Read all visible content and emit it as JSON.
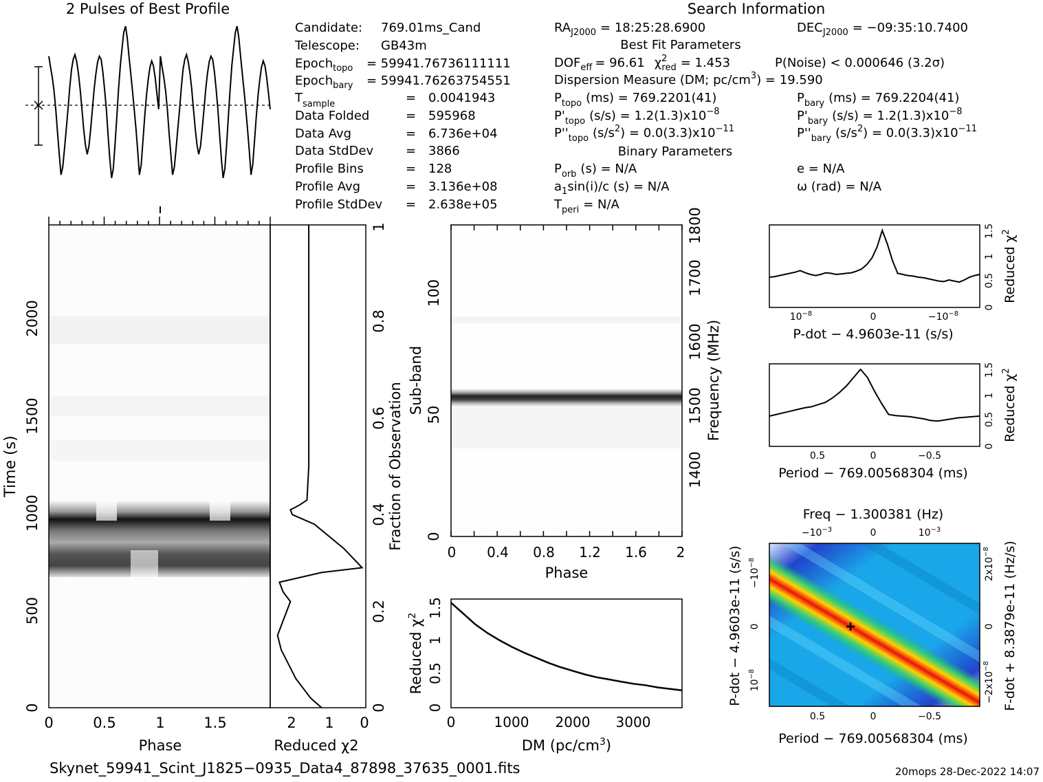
{
  "header": {
    "profile_title": "2 Pulses of Best Profile",
    "search_title": "Search Information",
    "best_fit_title": "Best Fit Parameters",
    "binary_title": "Binary Parameters"
  },
  "info_left": [
    {
      "label": "Candidate:",
      "value": "769.01ms_Cand"
    },
    {
      "label": "Telescope:",
      "value": "GB43m"
    },
    {
      "label": "Epoch",
      "sub": "topo",
      "value": "= 59941.76736111111"
    },
    {
      "label": "Epoch",
      "sub": "bary",
      "value": "= 59941.76263754551"
    },
    {
      "label": "T",
      "sub": "sample",
      "eq": "=",
      "value": "0.0041943"
    },
    {
      "label": "Data Folded",
      "eq": "=",
      "value": "595968"
    },
    {
      "label": "Data Avg",
      "eq": "=",
      "value": "6.736e+04"
    },
    {
      "label": "Data StdDev",
      "eq": "=",
      "value": "3866"
    },
    {
      "label": "Profile Bins",
      "eq": "=",
      "value": "128"
    },
    {
      "label": "Profile Avg",
      "eq": "=",
      "value": "3.136e+08"
    },
    {
      "label": "Profile StdDev",
      "eq": "=",
      "value": "2.638e+05"
    }
  ],
  "info_mid": {
    "ra": "= 18:25:28.6900",
    "ra_label": "RA",
    "ra_sub": "J2000",
    "dof": "DOF",
    "dof_sub": "eff",
    "dof_val": "= 96.61",
    "chi": "χ",
    "chi_sup": "2",
    "chi_sub": "red",
    "chi_val": "= 1.453",
    "pnoise": "P(Noise) < 0.000646   (3.2σ)",
    "dm": "Dispersion Measure (DM; pc/cm",
    "dm_sup": "3",
    "dm_val": ") = 19.590",
    "ptopo": "(ms) =   769.2201(41)",
    "pdtopo": "(s/s) =   1.2(1.3)x10",
    "pdtopo_exp": "−8",
    "pddtopo": "(s/s",
    "pddtopo_sup": "2",
    "pddtopo_val": ") = 0.0(3.3)x10",
    "pddtopo_exp": "−11",
    "porb": "(s) = N/A",
    "a1": "a",
    "a1_sub": "1",
    "a1_val": "sin(i)/c (s) = N/A",
    "tperi": "= N/A"
  },
  "info_right": {
    "dec_label": "DEC",
    "dec_sub": "J2000",
    "dec": "= −09:35:10.7400",
    "pbary": "(ms) =   769.2204(41)",
    "pdbary": "(s/s) =   1.2(1.3)x10",
    "pdbary_exp": "−8",
    "pddbary": "(s/s",
    "pddbary_sup": "2",
    "pddbary_val": ") = 0.0(3.3)x10",
    "pddbary_exp": "−11",
    "e": "e = N/A",
    "omega": "ω (rad) = N/A"
  },
  "footer": {
    "filename": "Skynet_59941_Scint_J1825−0935_Data4_87898_37635_0001.fits",
    "stamp": "20mops 28-Dec-2022 14:07"
  },
  "chart_data": [
    {
      "type": "line",
      "name": "profile",
      "title": "2 Pulses of Best Profile",
      "xlim": [
        0,
        2
      ],
      "y": [
        0.62,
        0.48,
        0.35,
        0.18,
        -0.05,
        -0.35,
        -0.62,
        -0.88,
        -0.78,
        -0.55,
        -0.3,
        -0.05,
        0.22,
        0.45,
        0.58,
        0.64,
        0.55,
        0.4,
        0.2,
        -0.05,
        -0.3,
        -0.5,
        -0.62,
        -0.52,
        -0.3,
        -0.05,
        0.2,
        0.4,
        0.55,
        0.62,
        0.58,
        0.42,
        0.2,
        -0.05,
        -0.38,
        -0.68,
        -0.92,
        -0.8,
        -0.5,
        -0.15,
        0.2,
        0.5,
        0.72,
        0.92,
        1.0,
        0.85,
        0.62,
        0.4,
        0.18,
        -0.05,
        -0.3,
        -0.58,
        -0.88,
        -0.75,
        -0.45,
        -0.15,
        0.12,
        0.32,
        0.48,
        0.56,
        0.5,
        0.35,
        0.15,
        -0.05,
        0.62,
        0.48,
        0.35,
        0.18,
        -0.05,
        -0.35,
        -0.62,
        -0.88,
        -0.78,
        -0.55,
        -0.3,
        -0.05,
        0.22,
        0.45,
        0.58,
        0.64,
        0.55,
        0.4,
        0.2,
        -0.05,
        -0.3,
        -0.5,
        -0.62,
        -0.52,
        -0.3,
        -0.05,
        0.2,
        0.4,
        0.55,
        0.62,
        0.58,
        0.42,
        0.2,
        -0.05,
        -0.38,
        -0.68,
        -0.92,
        -0.8,
        -0.5,
        -0.15,
        0.2,
        0.5,
        0.72,
        0.92,
        1.0,
        0.85,
        0.62,
        0.4,
        0.18,
        -0.05,
        -0.3,
        -0.58,
        -0.88,
        -0.75,
        -0.45,
        -0.15,
        0.12,
        0.32,
        0.48,
        0.56,
        0.5,
        0.35,
        0.15,
        -0.05
      ]
    },
    {
      "type": "heatmap",
      "name": "time_phase",
      "xlabel": "Phase",
      "ylabel": "Time (s)",
      "xlim": [
        0,
        2
      ],
      "ylim": [
        0,
        2480
      ],
      "xticks": [
        "0",
        "0.5",
        "1",
        "1.5"
      ],
      "yticks": [
        "0",
        "500",
        "1000",
        "1500",
        "2000"
      ],
      "dark_band_s": [
        700,
        1060
      ]
    },
    {
      "type": "line",
      "name": "time_chi",
      "xlabel": "Reduced χ2",
      "ylabel": "Fraction of Observation",
      "xticks": [
        "2",
        "1",
        "0"
      ],
      "yticks": [
        "0",
        "0.2",
        "0.4",
        "0.6",
        "0.8",
        "1"
      ],
      "points": [
        [
          1.2,
          0.0
        ],
        [
          1.5,
          0.02
        ],
        [
          1.9,
          0.06
        ],
        [
          2.3,
          0.12
        ],
        [
          2.4,
          0.15
        ],
        [
          2.25,
          0.18
        ],
        [
          2.05,
          0.22
        ],
        [
          2.25,
          0.24
        ],
        [
          2.35,
          0.26
        ],
        [
          1.2,
          0.28
        ],
        [
          0.1,
          0.29
        ],
        [
          0.6,
          0.33
        ],
        [
          1.4,
          0.38
        ],
        [
          2.0,
          0.4
        ],
        [
          2.05,
          0.41
        ],
        [
          1.8,
          0.42
        ],
        [
          1.6,
          0.43
        ],
        [
          1.55,
          0.5
        ],
        [
          1.55,
          0.7
        ],
        [
          1.55,
          0.9
        ],
        [
          1.55,
          1.0
        ]
      ]
    },
    {
      "type": "heatmap",
      "name": "subband_phase",
      "xlabel": "Phase",
      "ylabel": "Sub-band",
      "y2label": "Frequency (MHz)",
      "xlim": [
        0,
        2
      ],
      "xticks": [
        "0",
        "0.4",
        "0.8",
        "1.2",
        "1.6",
        "2"
      ],
      "yticks": [
        "0",
        "50",
        "100"
      ],
      "y2ticks": [
        "1400",
        "1500",
        "1600",
        "1700",
        "1800"
      ],
      "dark_band_subband": [
        55,
        60
      ]
    },
    {
      "type": "line",
      "name": "dm_chi",
      "xlabel": "DM (pc/cm3)",
      "ylabel": "Reduced χ2",
      "xlim": [
        0,
        3800
      ],
      "ylim": [
        0,
        1.5
      ],
      "xticks": [
        "0",
        "1000",
        "2000",
        "3000"
      ],
      "yticks": [
        "0",
        "0.5",
        "1",
        "1.5"
      ],
      "x": [
        0,
        200,
        400,
        600,
        800,
        1000,
        1200,
        1400,
        1600,
        1800,
        2000,
        2200,
        2400,
        2600,
        2800,
        3000,
        3200,
        3400,
        3600,
        3800
      ],
      "y": [
        1.45,
        1.3,
        1.15,
        1.03,
        0.93,
        0.84,
        0.76,
        0.69,
        0.62,
        0.56,
        0.51,
        0.46,
        0.42,
        0.39,
        0.36,
        0.33,
        0.31,
        0.28,
        0.26,
        0.24
      ]
    },
    {
      "type": "line",
      "name": "pdot_chi",
      "xlabel": "P-dot − 4.9603e-11 (s/s)",
      "ylabel": "Reduced χ2",
      "xticks": [
        "10−8",
        "0",
        "−10−8"
      ],
      "yticks": [
        "0",
        "0.5",
        "1",
        "1.5"
      ],
      "ylim": [
        0,
        1.5
      ],
      "y": [
        0.55,
        0.56,
        0.58,
        0.6,
        0.62,
        0.64,
        0.67,
        0.63,
        0.6,
        0.58,
        0.6,
        0.63,
        0.62,
        0.6,
        0.61,
        0.62,
        0.63,
        0.66,
        0.7,
        0.78,
        0.9,
        1.1,
        1.4,
        1.15,
        0.85,
        0.62,
        0.6,
        0.58,
        0.57,
        0.55,
        0.54,
        0.52,
        0.5,
        0.48,
        0.47,
        0.5,
        0.48,
        0.46,
        0.5,
        0.55,
        0.58,
        0.6
      ]
    },
    {
      "type": "line",
      "name": "period_chi",
      "xlabel": "Period − 769.00568304 (ms)",
      "ylabel": "Reduced χ2",
      "xticks": [
        "0.5",
        "0",
        "−0.5"
      ],
      "yticks": [
        "0",
        "0.5",
        "1",
        "1.5"
      ],
      "ylim": [
        0,
        1.5
      ],
      "y": [
        0.55,
        0.58,
        0.61,
        0.64,
        0.67,
        0.7,
        0.72,
        0.76,
        0.8,
        0.88,
        0.98,
        1.1,
        1.25,
        1.4,
        1.25,
        1.0,
        0.78,
        0.58,
        0.56,
        0.55,
        0.54,
        0.52,
        0.5,
        0.47,
        0.46,
        0.48,
        0.5,
        0.52,
        0.53,
        0.54,
        0.55
      ]
    },
    {
      "type": "heatmap",
      "name": "p_pdot_plane",
      "title": "Freq − 1.300381 (Hz)",
      "xlabel": "Period − 769.00568304 (ms)",
      "ylabel": "P-dot − 4.9603e-11 (s/s)",
      "y2label": "F-dot + 8.3879e-11 (Hz/s)",
      "xticks": [
        "0.5",
        "0",
        "−0.5"
      ],
      "x2ticks": [
        "−10−3",
        "0",
        "10−3"
      ],
      "yticks": [
        "10−8",
        "0",
        "−10−8"
      ],
      "y2ticks": [
        "2x10−8",
        "0",
        "−2x10−8"
      ]
    }
  ]
}
